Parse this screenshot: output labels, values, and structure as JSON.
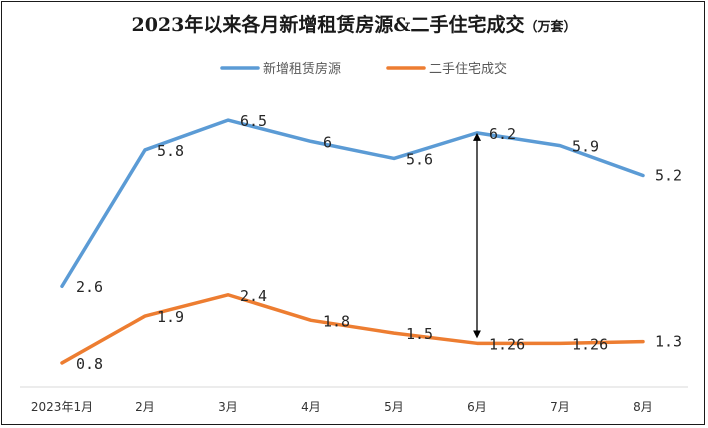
{
  "chart_data": {
    "type": "line",
    "title": "2023年以来各月新增租赁房源&二手住宅成交",
    "title_unit": "（万套）",
    "categories": [
      "2023年1月",
      "2月",
      "3月",
      "4月",
      "5月",
      "6月",
      "7月",
      "8月"
    ],
    "series": [
      {
        "name": "新增租赁房源",
        "color": "#5b9bd5",
        "values": [
          2.6,
          5.8,
          6.5,
          6,
          5.6,
          6.2,
          5.9,
          5.2
        ],
        "labels": [
          "2.6",
          "5.8",
          "6.5",
          "6",
          "5.6",
          "6.2",
          "5.9",
          "5.2"
        ]
      },
      {
        "name": "二手住宅成交",
        "color": "#ed7d31",
        "values": [
          0.8,
          1.9,
          2.4,
          1.8,
          1.5,
          1.26,
          1.26,
          1.3
        ],
        "labels": [
          "0.8",
          "1.9",
          "2.4",
          "1.8",
          "1.5",
          "1.26",
          "1.26",
          "1.3"
        ]
      }
    ],
    "legend_position": "top-center",
    "grid": false,
    "annotation": {
      "type": "double-arrow",
      "category": "6月",
      "from_series": "新增租赁房源",
      "to_series": "二手住宅成交"
    }
  }
}
